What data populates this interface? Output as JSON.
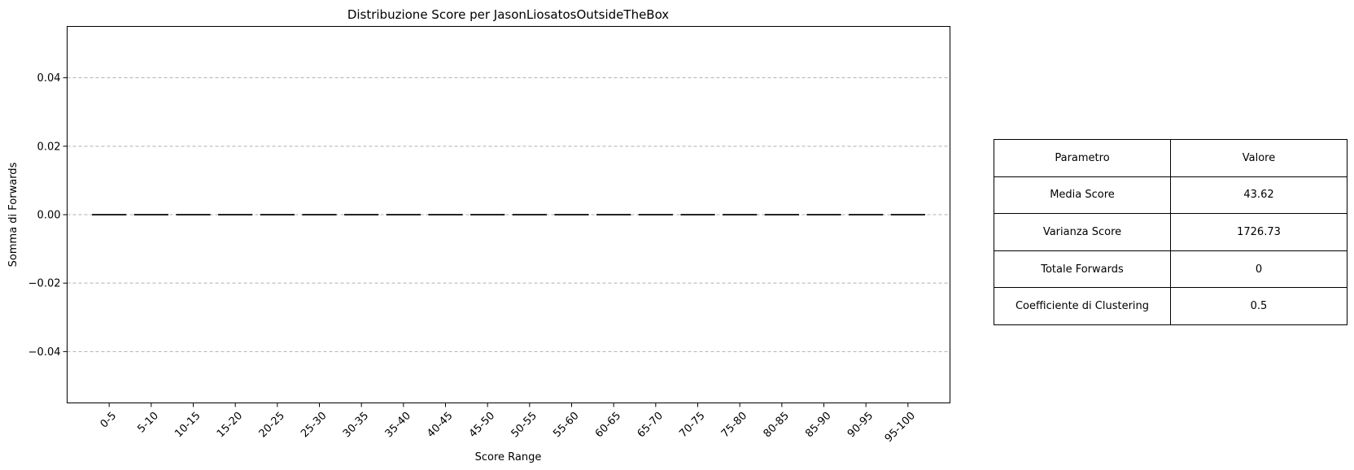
{
  "chart_data": {
    "type": "bar",
    "title": "Distribuzione Score per JasonLiosatosOutsideTheBox",
    "xlabel": "Score Range",
    "ylabel": "Somma di Forwards",
    "categories": [
      "0-5",
      "5-10",
      "10-15",
      "15-20",
      "20-25",
      "25-30",
      "30-35",
      "35-40",
      "40-45",
      "45-50",
      "50-55",
      "55-60",
      "60-65",
      "65-70",
      "70-75",
      "75-80",
      "80-85",
      "85-90",
      "90-95",
      "95-100"
    ],
    "values": [
      0,
      0,
      0,
      0,
      0,
      0,
      0,
      0,
      0,
      0,
      0,
      0,
      0,
      0,
      0,
      0,
      0,
      0,
      0,
      0
    ],
    "ylim": [
      -0.055,
      0.055
    ],
    "yticks": [
      -0.04,
      -0.02,
      0.0,
      0.02,
      0.04
    ],
    "ytick_labels": [
      "−0.04",
      "−0.02",
      "0.00",
      "0.02",
      "0.04"
    ],
    "grid": "y-dashed",
    "bar_edge_color": "#000000",
    "grid_color": "#b0b0b0"
  },
  "table": {
    "headers": [
      "Parametro",
      "Valore"
    ],
    "rows": [
      [
        "Media Score",
        "43.62"
      ],
      [
        "Varianza Score",
        "1726.73"
      ],
      [
        "Totale Forwards",
        "0"
      ],
      [
        "Coefficiente di Clustering",
        "0.5"
      ]
    ]
  }
}
